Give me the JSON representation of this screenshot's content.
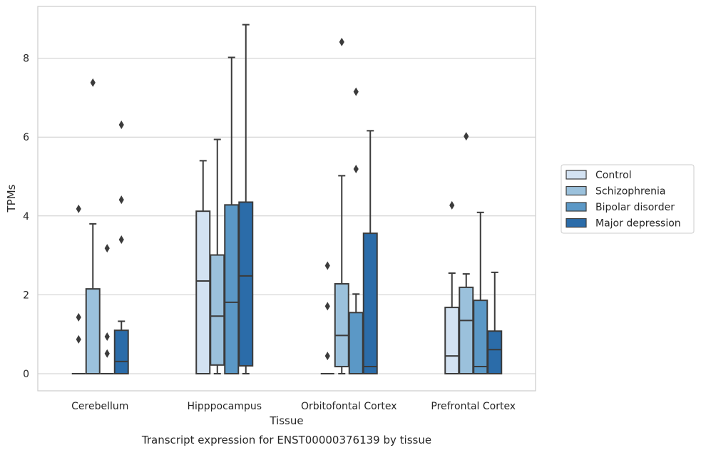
{
  "chart_data": {
    "type": "boxplot",
    "caption": "Transcript expression for ENST00000376139 by tissue",
    "xlabel": "Tissue",
    "ylabel": "TPMs",
    "ylim": [
      -0.42,
      9.3
    ],
    "yticks": [
      0,
      2,
      4,
      6,
      8
    ],
    "grid": "horizontal",
    "legend_position": "right",
    "categories": [
      "Cerebellum",
      "Hipppocampus",
      "Orbitofontal Cortex",
      "Prefrontal Cortex"
    ],
    "series": [
      {
        "name": "Control",
        "color": "#d3e2f2",
        "boxes": [
          {
            "q1": 0,
            "median": 0,
            "q3": 0,
            "whisker_low": 0,
            "whisker_high": 0,
            "outliers": [
              0.87,
              1.43,
              4.18
            ]
          },
          {
            "q1": 0,
            "median": 2.35,
            "q3": 4.12,
            "whisker_low": 0,
            "whisker_high": 5.4,
            "outliers": []
          },
          {
            "q1": 0,
            "median": 0,
            "q3": 0,
            "whisker_low": 0,
            "whisker_high": 0,
            "outliers": [
              0.45,
              1.71,
              2.74
            ]
          },
          {
            "q1": 0,
            "median": 0.45,
            "q3": 1.68,
            "whisker_low": 0,
            "whisker_high": 2.55,
            "outliers": [
              4.27
            ]
          }
        ]
      },
      {
        "name": "Schizophrenia",
        "color": "#9bc1dc",
        "boxes": [
          {
            "q1": 0,
            "median": 0,
            "q3": 2.15,
            "whisker_low": 0,
            "whisker_high": 3.8,
            "outliers": [
              7.38
            ]
          },
          {
            "q1": 0.22,
            "median": 1.46,
            "q3": 3.01,
            "whisker_low": 0,
            "whisker_high": 5.94,
            "outliers": []
          },
          {
            "q1": 0.18,
            "median": 0.97,
            "q3": 2.28,
            "whisker_low": 0,
            "whisker_high": 5.02,
            "outliers": [
              8.41
            ]
          },
          {
            "q1": 0,
            "median": 1.35,
            "q3": 2.19,
            "whisker_low": 0,
            "whisker_high": 2.53,
            "outliers": [
              6.02
            ]
          }
        ]
      },
      {
        "name": "Bipolar disorder",
        "color": "#5b98c6",
        "boxes": [
          {
            "q1": 0,
            "median": 0,
            "q3": 0,
            "whisker_low": 0,
            "whisker_high": 0,
            "outliers": [
              0.51,
              0.94,
              3.18
            ]
          },
          {
            "q1": 0,
            "median": 1.81,
            "q3": 4.28,
            "whisker_low": 0,
            "whisker_high": 8.02,
            "outliers": []
          },
          {
            "q1": 0,
            "median": 0,
            "q3": 1.55,
            "whisker_low": 0,
            "whisker_high": 2.02,
            "outliers": [
              5.19,
              7.15
            ]
          },
          {
            "q1": 0,
            "median": 0.18,
            "q3": 1.86,
            "whisker_low": 0,
            "whisker_high": 4.09,
            "outliers": []
          }
        ]
      },
      {
        "name": "Major depression",
        "color": "#2b6ca9",
        "boxes": [
          {
            "q1": 0,
            "median": 0.31,
            "q3": 1.1,
            "whisker_low": 0,
            "whisker_high": 1.33,
            "outliers": [
              3.4,
              4.41,
              6.31
            ]
          },
          {
            "q1": 0.2,
            "median": 2.48,
            "q3": 4.35,
            "whisker_low": 0,
            "whisker_high": 8.85,
            "outliers": []
          },
          {
            "q1": 0,
            "median": 0.18,
            "q3": 3.56,
            "whisker_low": 0,
            "whisker_high": 6.16,
            "outliers": []
          },
          {
            "q1": 0,
            "median": 0.61,
            "q3": 1.08,
            "whisker_low": 0,
            "whisker_high": 2.57,
            "outliers": []
          }
        ]
      }
    ]
  }
}
